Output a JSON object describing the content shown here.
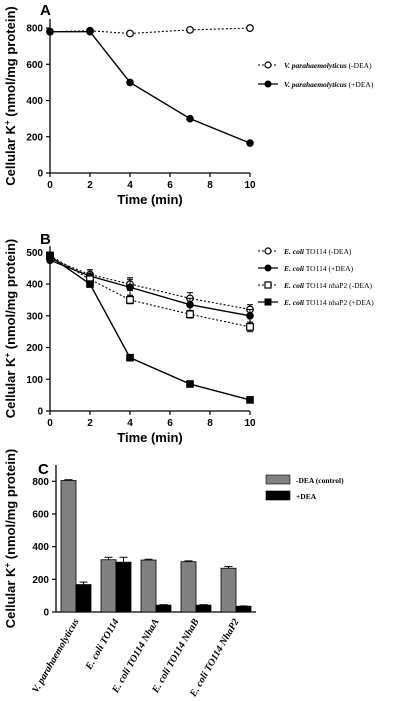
{
  "chart_data": [
    {
      "panel": "A",
      "type": "line",
      "xlabel": "Time (min)",
      "ylabel_main": "Cellular K",
      "ylabel_sup": "+",
      "ylabel_tail": " (nmol/mg protein)",
      "xlim": [
        0,
        10
      ],
      "ylim": [
        0,
        850
      ],
      "x_ticks": [
        0,
        2,
        4,
        6,
        8,
        10
      ],
      "y_ticks": [
        0,
        200,
        400,
        600,
        800
      ],
      "grid": false,
      "legend_position": "right",
      "series": [
        {
          "species": "V. parahaemolyticus",
          "suffix": " (-DEA)",
          "marker": "open-circle",
          "line": "dotted",
          "x": [
            0,
            2,
            4,
            7,
            10
          ],
          "y": [
            780,
            785,
            770,
            790,
            800
          ]
        },
        {
          "species": "V. parahaemolyticus",
          "suffix": " (+DEA)",
          "marker": "filled-circle",
          "line": "solid",
          "x": [
            0,
            2,
            4,
            7,
            10
          ],
          "y": [
            780,
            780,
            500,
            300,
            165
          ]
        }
      ]
    },
    {
      "panel": "B",
      "type": "line",
      "xlabel": "Time (min)",
      "ylabel_main": "Cellular K",
      "ylabel_sup": "+",
      "ylabel_tail": " (nmol/mg protein)",
      "xlim": [
        0,
        10
      ],
      "ylim": [
        0,
        520
      ],
      "x_ticks": [
        0,
        2,
        4,
        6,
        8,
        10
      ],
      "y_ticks": [
        0,
        100,
        200,
        300,
        400,
        500
      ],
      "grid": false,
      "legend_position": "right",
      "series": [
        {
          "species": "E. coli",
          "suffix": " TO114 (-DEA)",
          "marker": "open-circle",
          "line": "dotted",
          "x": [
            0,
            2,
            4,
            7,
            10
          ],
          "y": [
            480,
            430,
            400,
            355,
            320
          ],
          "err": [
            0,
            15,
            20,
            18,
            15
          ]
        },
        {
          "species": "E. coli",
          "suffix": " TO114 (+DEA)",
          "marker": "filled-circle",
          "line": "solid",
          "x": [
            0,
            2,
            4,
            7,
            10
          ],
          "y": [
            475,
            425,
            390,
            335,
            300
          ],
          "err": [
            0,
            20,
            25,
            20,
            20
          ]
        },
        {
          "species": "E. coli",
          "suffix": " TO114 nhaP2  (-DEA)",
          "marker": "open-square",
          "line": "dotted",
          "x": [
            0,
            2,
            4,
            7,
            10
          ],
          "y": [
            490,
            415,
            350,
            305,
            265
          ],
          "err": [
            0,
            10,
            12,
            12,
            15
          ]
        },
        {
          "species": "E. coli",
          "suffix": " TO114 nhaP2  (+DEA)",
          "marker": "filled-square",
          "line": "solid",
          "x": [
            0,
            2,
            4,
            7,
            10
          ],
          "y": [
            488,
            400,
            168,
            85,
            35
          ],
          "err": [
            0,
            5,
            5,
            5,
            3
          ]
        }
      ]
    },
    {
      "panel": "C",
      "type": "bar",
      "ylabel_main": "Cellular K",
      "ylabel_sup": "+",
      "ylabel_tail": " (nmol/mg protein)",
      "ylim": [
        0,
        900
      ],
      "y_ticks": [
        0,
        200,
        400,
        600,
        800
      ],
      "grid": false,
      "legend_position": "top-right",
      "categories": [
        "V. parahaemolyticus",
        "E. coli TO114",
        "E. coli TO114 NhaA",
        "E. coli TO114 NhaB",
        "E. coli TO114 NhaP2"
      ],
      "series": [
        {
          "name": "-DEA (control)",
          "color": "#808080",
          "values": [
            805,
            320,
            318,
            308,
            268
          ],
          "err": [
            5,
            15,
            5,
            5,
            10
          ]
        },
        {
          "name": "+DEA",
          "color": "#000000",
          "values": [
            168,
            305,
            42,
            42,
            35
          ],
          "err": [
            15,
            30,
            3,
            3,
            2
          ]
        }
      ]
    }
  ]
}
